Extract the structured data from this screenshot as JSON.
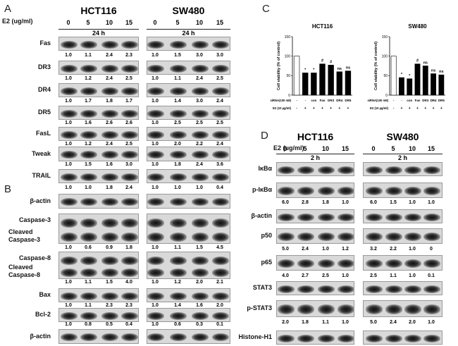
{
  "panels": [
    {
      "letter": "A",
      "treatment_label": "E2 (ug/ml)",
      "cell_lines": [
        "HCT116",
        "SW480"
      ],
      "doses": [
        0,
        5,
        10,
        15
      ],
      "time": "24 h",
      "rows": [
        {
          "labels": [
            "Fas"
          ],
          "quant": [
            [
              "1.0",
              "1.1",
              "2.4",
              "2.3"
            ],
            [
              "1.0",
              "1.5",
              "3.0",
              "3.0"
            ]
          ]
        },
        {
          "labels": [
            "DR3"
          ],
          "quant": [
            [
              "1.0",
              "1.2",
              "2.4",
              "2.5"
            ],
            [
              "1.0",
              "1.1",
              "2.4",
              "2.5"
            ]
          ]
        },
        {
          "labels": [
            "DR4"
          ],
          "quant": [
            [
              "1.0",
              "1.7",
              "1.8",
              "1.7"
            ],
            [
              "1.0",
              "1.4",
              "3.0",
              "2.4"
            ]
          ]
        },
        {
          "labels": [
            "DR5"
          ],
          "quant": [
            [
              "1.0",
              "1.6",
              "2.6",
              "2.6"
            ],
            [
              "1.0",
              "2.5",
              "2.5",
              "2.5"
            ]
          ]
        },
        {
          "labels": [
            "FasL"
          ],
          "quant": [
            [
              "1.0",
              "1.2",
              "2.4",
              "2.5"
            ],
            [
              "1.0",
              "2.0",
              "2.2",
              "2.4"
            ]
          ]
        },
        {
          "labels": [
            "Tweak"
          ],
          "quant": [
            [
              "1.0",
              "1.5",
              "1.6",
              "3.0"
            ],
            [
              "1.0",
              "1.8",
              "2.4",
              "3.6"
            ]
          ]
        },
        {
          "labels": [
            "TRAIL"
          ],
          "quant": [
            [
              "1.0",
              "1.0",
              "1.8",
              "2.4"
            ],
            [
              "1.0",
              "1.0",
              "1.0",
              "0.4"
            ]
          ]
        },
        {
          "labels": [
            "β-actin"
          ]
        }
      ]
    },
    {
      "letter": "B",
      "rows": [
        {
          "labels": [
            "Caspase-3",
            "Cleaved Caspase-3"
          ],
          "quant": [
            [
              "1.0",
              "0.6",
              "0.9",
              "1.8"
            ],
            [
              "1.0",
              "1.1",
              "1.5",
              "4.5"
            ]
          ]
        },
        {
          "labels": [
            "Caspase-8",
            "Cleaved Caspase-8"
          ],
          "quant": [
            [
              "1.0",
              "1.1",
              "1.5",
              "4.0"
            ],
            [
              "1.0",
              "1.2",
              "2.0",
              "2.1"
            ]
          ]
        },
        {
          "labels": [
            "Bax"
          ],
          "quant": [
            [
              "1.0",
              "1.1",
              "2.3",
              "2.3"
            ],
            [
              "1.0",
              "1.4",
              "1.6",
              "2.0"
            ]
          ]
        },
        {
          "labels": [
            "Bcl-2"
          ],
          "quant": [
            [
              "1.0",
              "0.8",
              "0.5",
              "0.4"
            ],
            [
              "1.0",
              "0.6",
              "0.3",
              "0.1"
            ]
          ]
        },
        {
          "labels": [
            "β-actin"
          ]
        }
      ]
    },
    {
      "letter": "D",
      "treatment_label": "E2 (ug/ml)",
      "cell_lines": [
        "HCT116",
        "SW480"
      ],
      "doses": [
        0,
        5,
        10,
        15
      ],
      "time": "2 h",
      "rows": [
        {
          "labels": [
            "IκBα"
          ]
        },
        {
          "labels": [
            "p-IκBα"
          ],
          "quant": [
            [
              "6.0",
              "2.8",
              "1.8",
              "1.0"
            ],
            [
              "6.0",
              "1.5",
              "1.0",
              "1.0"
            ]
          ]
        },
        {
          "labels": [
            "β-actin"
          ]
        },
        {
          "labels": [
            "p50"
          ],
          "quant": [
            [
              "5.0",
              "2.4",
              "1.0",
              "1.2"
            ],
            [
              "3.2",
              "2.2",
              "1.0",
              "0"
            ]
          ]
        },
        {
          "labels": [
            "p65"
          ],
          "quant": [
            [
              "4.0",
              "2.7",
              "2.5",
              "1.0"
            ],
            [
              "2.5",
              "1.1",
              "1.0",
              "0.1"
            ]
          ]
        },
        {
          "labels": [
            "STAT3"
          ]
        },
        {
          "labels": [
            "p-STAT3"
          ],
          "quant": [
            [
              "2.0",
              "1.8",
              "1.1",
              "1.0"
            ],
            [
              "5.0",
              "2.4",
              "2.0",
              "1.0"
            ]
          ]
        },
        {
          "labels": [
            "Histone-H1"
          ]
        }
      ]
    }
  ],
  "chart_panel": {
    "letter": "C"
  },
  "chart_data": [
    {
      "type": "bar",
      "title": "HCT116",
      "y_label": "Cell viability (% of control)",
      "ylim": [
        0,
        150
      ],
      "yticks": [
        0,
        50,
        100,
        150
      ],
      "category_label": "siRNA(100 nM)",
      "categories": [
        "-",
        "-",
        "con",
        "Fas",
        "DR3",
        "DR4",
        "DR5"
      ],
      "e2_label": "E2 (10 µg/ml)",
      "e2": [
        "-",
        "+",
        "+",
        "+",
        "+",
        "+",
        "+"
      ],
      "values": [
        100,
        57,
        57,
        80,
        77,
        60,
        62
      ],
      "annotations": [
        null,
        "*",
        "*",
        "#",
        "#",
        "ns",
        "ns"
      ],
      "colors": [
        "#ffffff",
        "#000000",
        "#000000",
        "#000000",
        "#000000",
        "#000000",
        "#000000"
      ]
    },
    {
      "type": "bar",
      "title": "SW480",
      "y_label": "Cell viability (% of control)",
      "ylim": [
        0,
        150
      ],
      "yticks": [
        0,
        50,
        100,
        150
      ],
      "category_label": "siRNA(100 nM)",
      "categories": [
        "-",
        "-",
        "con",
        "Fas",
        "DR3",
        "DR4",
        "DR5"
      ],
      "e2_label": "E2 (10 µg/ml)",
      "e2": [
        "-",
        "+",
        "+",
        "+",
        "+",
        "+",
        "+"
      ],
      "values": [
        100,
        45,
        42,
        80,
        75,
        55,
        52
      ],
      "annotations": [
        null,
        "*",
        "*",
        "#",
        "ns",
        "ns",
        "ns"
      ],
      "colors": [
        "#ffffff",
        "#000000",
        "#000000",
        "#000000",
        "#000000",
        "#000000",
        "#000000"
      ]
    }
  ]
}
